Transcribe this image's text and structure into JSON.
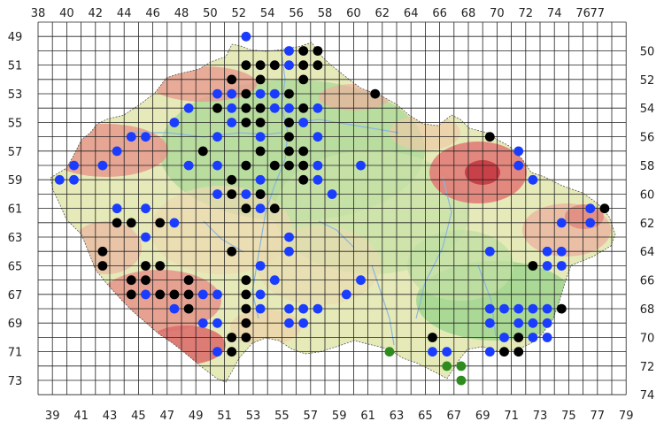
{
  "map": {
    "x_labels_top": [
      "38",
      "40",
      "42",
      "44",
      "46",
      "48",
      "50",
      "52",
      "54",
      "56",
      "58",
      "60",
      "62",
      "64",
      "66",
      "68",
      "70",
      "72",
      "74",
      "76",
      "77"
    ],
    "x_labels_bottom": [
      "39",
      "41",
      "43",
      "45",
      "47",
      "49",
      "51",
      "53",
      "55",
      "57",
      "59",
      "61",
      "63",
      "65",
      "67",
      "69",
      "71",
      "73",
      "75",
      "77",
      "79"
    ],
    "y_labels_left": [
      "49",
      "51",
      "53",
      "55",
      "57",
      "59",
      "61",
      "63",
      "65",
      "67",
      "69",
      "71",
      "73"
    ],
    "y_labels_right": [
      "50",
      "52",
      "54",
      "56",
      "58",
      "60",
      "62",
      "64",
      "66",
      "68",
      "70",
      "72",
      "74"
    ],
    "colors": {
      "blue": "#1a3cff",
      "black": "#000000",
      "green": "#2e8b1e",
      "terrain_low": "#a8d89a",
      "terrain_mid": "#e8ecc0",
      "terrain_high": "#e88a80",
      "terrain_peak": "#cc3a40",
      "grid": "#222222"
    },
    "points": {
      "blue": [
        [
          52,
          49
        ],
        [
          55,
          50
        ],
        [
          55,
          51
        ],
        [
          50,
          53
        ],
        [
          51,
          53
        ],
        [
          53,
          53
        ],
        [
          54,
          53
        ],
        [
          48,
          54
        ],
        [
          51,
          54
        ],
        [
          54,
          54
        ],
        [
          55,
          54
        ],
        [
          57,
          54
        ],
        [
          47,
          55
        ],
        [
          51,
          55
        ],
        [
          55,
          55
        ],
        [
          56,
          55
        ],
        [
          44,
          56
        ],
        [
          45,
          56
        ],
        [
          50,
          56
        ],
        [
          53,
          56
        ],
        [
          57,
          56
        ],
        [
          43,
          57
        ],
        [
          71,
          57
        ],
        [
          40,
          58
        ],
        [
          42,
          58
        ],
        [
          48,
          58
        ],
        [
          50,
          58
        ],
        [
          57,
          58
        ],
        [
          60,
          58
        ],
        [
          71,
          58
        ],
        [
          39,
          59
        ],
        [
          40,
          59
        ],
        [
          53,
          59
        ],
        [
          57,
          59
        ],
        [
          72,
          59
        ],
        [
          50,
          60
        ],
        [
          52,
          60
        ],
        [
          53,
          60
        ],
        [
          58,
          60
        ],
        [
          43,
          61
        ],
        [
          45,
          61
        ],
        [
          53,
          61
        ],
        [
          76,
          61
        ],
        [
          47,
          62
        ],
        [
          74,
          62
        ],
        [
          76,
          62
        ],
        [
          45,
          63
        ],
        [
          55,
          63
        ],
        [
          55,
          64
        ],
        [
          69,
          64
        ],
        [
          73,
          64
        ],
        [
          74,
          64
        ],
        [
          53,
          65
        ],
        [
          73,
          65
        ],
        [
          74,
          65
        ],
        [
          54,
          66
        ],
        [
          60,
          66
        ],
        [
          45,
          67
        ],
        [
          49,
          67
        ],
        [
          50,
          67
        ],
        [
          53,
          67
        ],
        [
          59,
          67
        ],
        [
          47,
          68
        ],
        [
          53,
          68
        ],
        [
          55,
          68
        ],
        [
          56,
          68
        ],
        [
          57,
          68
        ],
        [
          69,
          68
        ],
        [
          70,
          68
        ],
        [
          71,
          68
        ],
        [
          72,
          68
        ],
        [
          73,
          68
        ],
        [
          49,
          69
        ],
        [
          50,
          69
        ],
        [
          55,
          69
        ],
        [
          56,
          69
        ],
        [
          69,
          69
        ],
        [
          71,
          69
        ],
        [
          72,
          69
        ],
        [
          73,
          69
        ],
        [
          70,
          70
        ],
        [
          72,
          70
        ],
        [
          73,
          70
        ],
        [
          50,
          71
        ],
        [
          65,
          71
        ],
        [
          66,
          71
        ],
        [
          69,
          71
        ]
      ],
      "black": [
        [
          56,
          50
        ],
        [
          57,
          50
        ],
        [
          52,
          51
        ],
        [
          53,
          51
        ],
        [
          54,
          51
        ],
        [
          56,
          51
        ],
        [
          57,
          51
        ],
        [
          51,
          52
        ],
        [
          53,
          52
        ],
        [
          56,
          52
        ],
        [
          61,
          53
        ],
        [
          52,
          53
        ],
        [
          55,
          53
        ],
        [
          50,
          54
        ],
        [
          52,
          54
        ],
        [
          53,
          54
        ],
        [
          56,
          54
        ],
        [
          52,
          55
        ],
        [
          53,
          55
        ],
        [
          55,
          55
        ],
        [
          55,
          56
        ],
        [
          69,
          56
        ],
        [
          49,
          57
        ],
        [
          53,
          57
        ],
        [
          55,
          57
        ],
        [
          56,
          57
        ],
        [
          54,
          58
        ],
        [
          55,
          58
        ],
        [
          56,
          58
        ],
        [
          52,
          58
        ],
        [
          51,
          59
        ],
        [
          56,
          59
        ],
        [
          51,
          60
        ],
        [
          53,
          60
        ],
        [
          52,
          61
        ],
        [
          54,
          61
        ],
        [
          77,
          61
        ],
        [
          43,
          62
        ],
        [
          44,
          62
        ],
        [
          46,
          62
        ],
        [
          51,
          64
        ],
        [
          42,
          64
        ],
        [
          42,
          65
        ],
        [
          45,
          65
        ],
        [
          46,
          65
        ],
        [
          72,
          65
        ],
        [
          44,
          66
        ],
        [
          45,
          66
        ],
        [
          48,
          66
        ],
        [
          52,
          66
        ],
        [
          44,
          67
        ],
        [
          46,
          67
        ],
        [
          47,
          67
        ],
        [
          48,
          67
        ],
        [
          52,
          67
        ],
        [
          48,
          68
        ],
        [
          52,
          68
        ],
        [
          74,
          68
        ],
        [
          52,
          69
        ],
        [
          51,
          70
        ],
        [
          52,
          70
        ],
        [
          65,
          70
        ],
        [
          71,
          70
        ],
        [
          51,
          71
        ],
        [
          70,
          71
        ],
        [
          71,
          71
        ]
      ],
      "green": [
        [
          62,
          71
        ],
        [
          66,
          72
        ],
        [
          67,
          72
        ],
        [
          67,
          73
        ]
      ]
    }
  }
}
